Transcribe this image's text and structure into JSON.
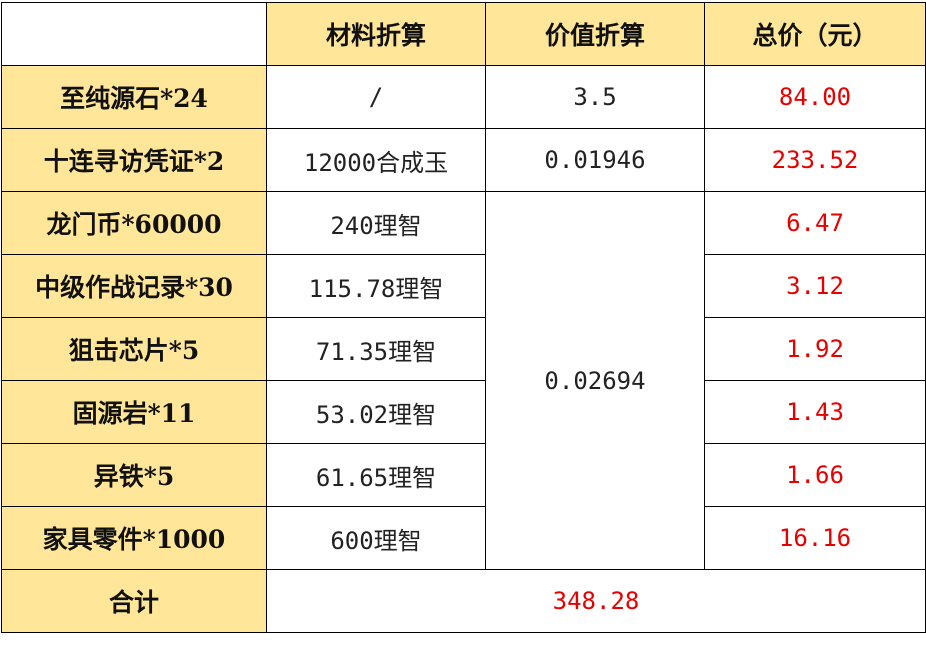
{
  "colors": {
    "header_bg": "#ffe699",
    "price_text": "#e60000",
    "border": "#000000"
  },
  "header": {
    "col_blank": "",
    "col_material": "材料折算",
    "col_value": "价值折算",
    "col_total": "总价（元）"
  },
  "rows": [
    {
      "item": "至纯源石*24",
      "material": "/",
      "value": "3.5",
      "total": "84.00"
    },
    {
      "item": "十连寻访凭证*2",
      "material": "12000合成玉",
      "value": "0.01946",
      "total": "233.52"
    },
    {
      "item": "龙门币*60000",
      "material": "240理智",
      "total": "6.47"
    },
    {
      "item": "中级作战记录*30",
      "material": "115.78理智",
      "total": "3.12"
    },
    {
      "item": "狙击芯片*5",
      "material": "71.35理智",
      "total": "1.92"
    },
    {
      "item": "固源岩*11",
      "material": "53.02理智",
      "total": "1.43"
    },
    {
      "item": "异铁*5",
      "material": "61.65理智",
      "total": "1.66"
    },
    {
      "item": "家具零件*1000",
      "material": "600理智",
      "total": "16.16"
    }
  ],
  "merged_value": "0.02694",
  "summary": {
    "label": "合计",
    "value": "348.28"
  }
}
